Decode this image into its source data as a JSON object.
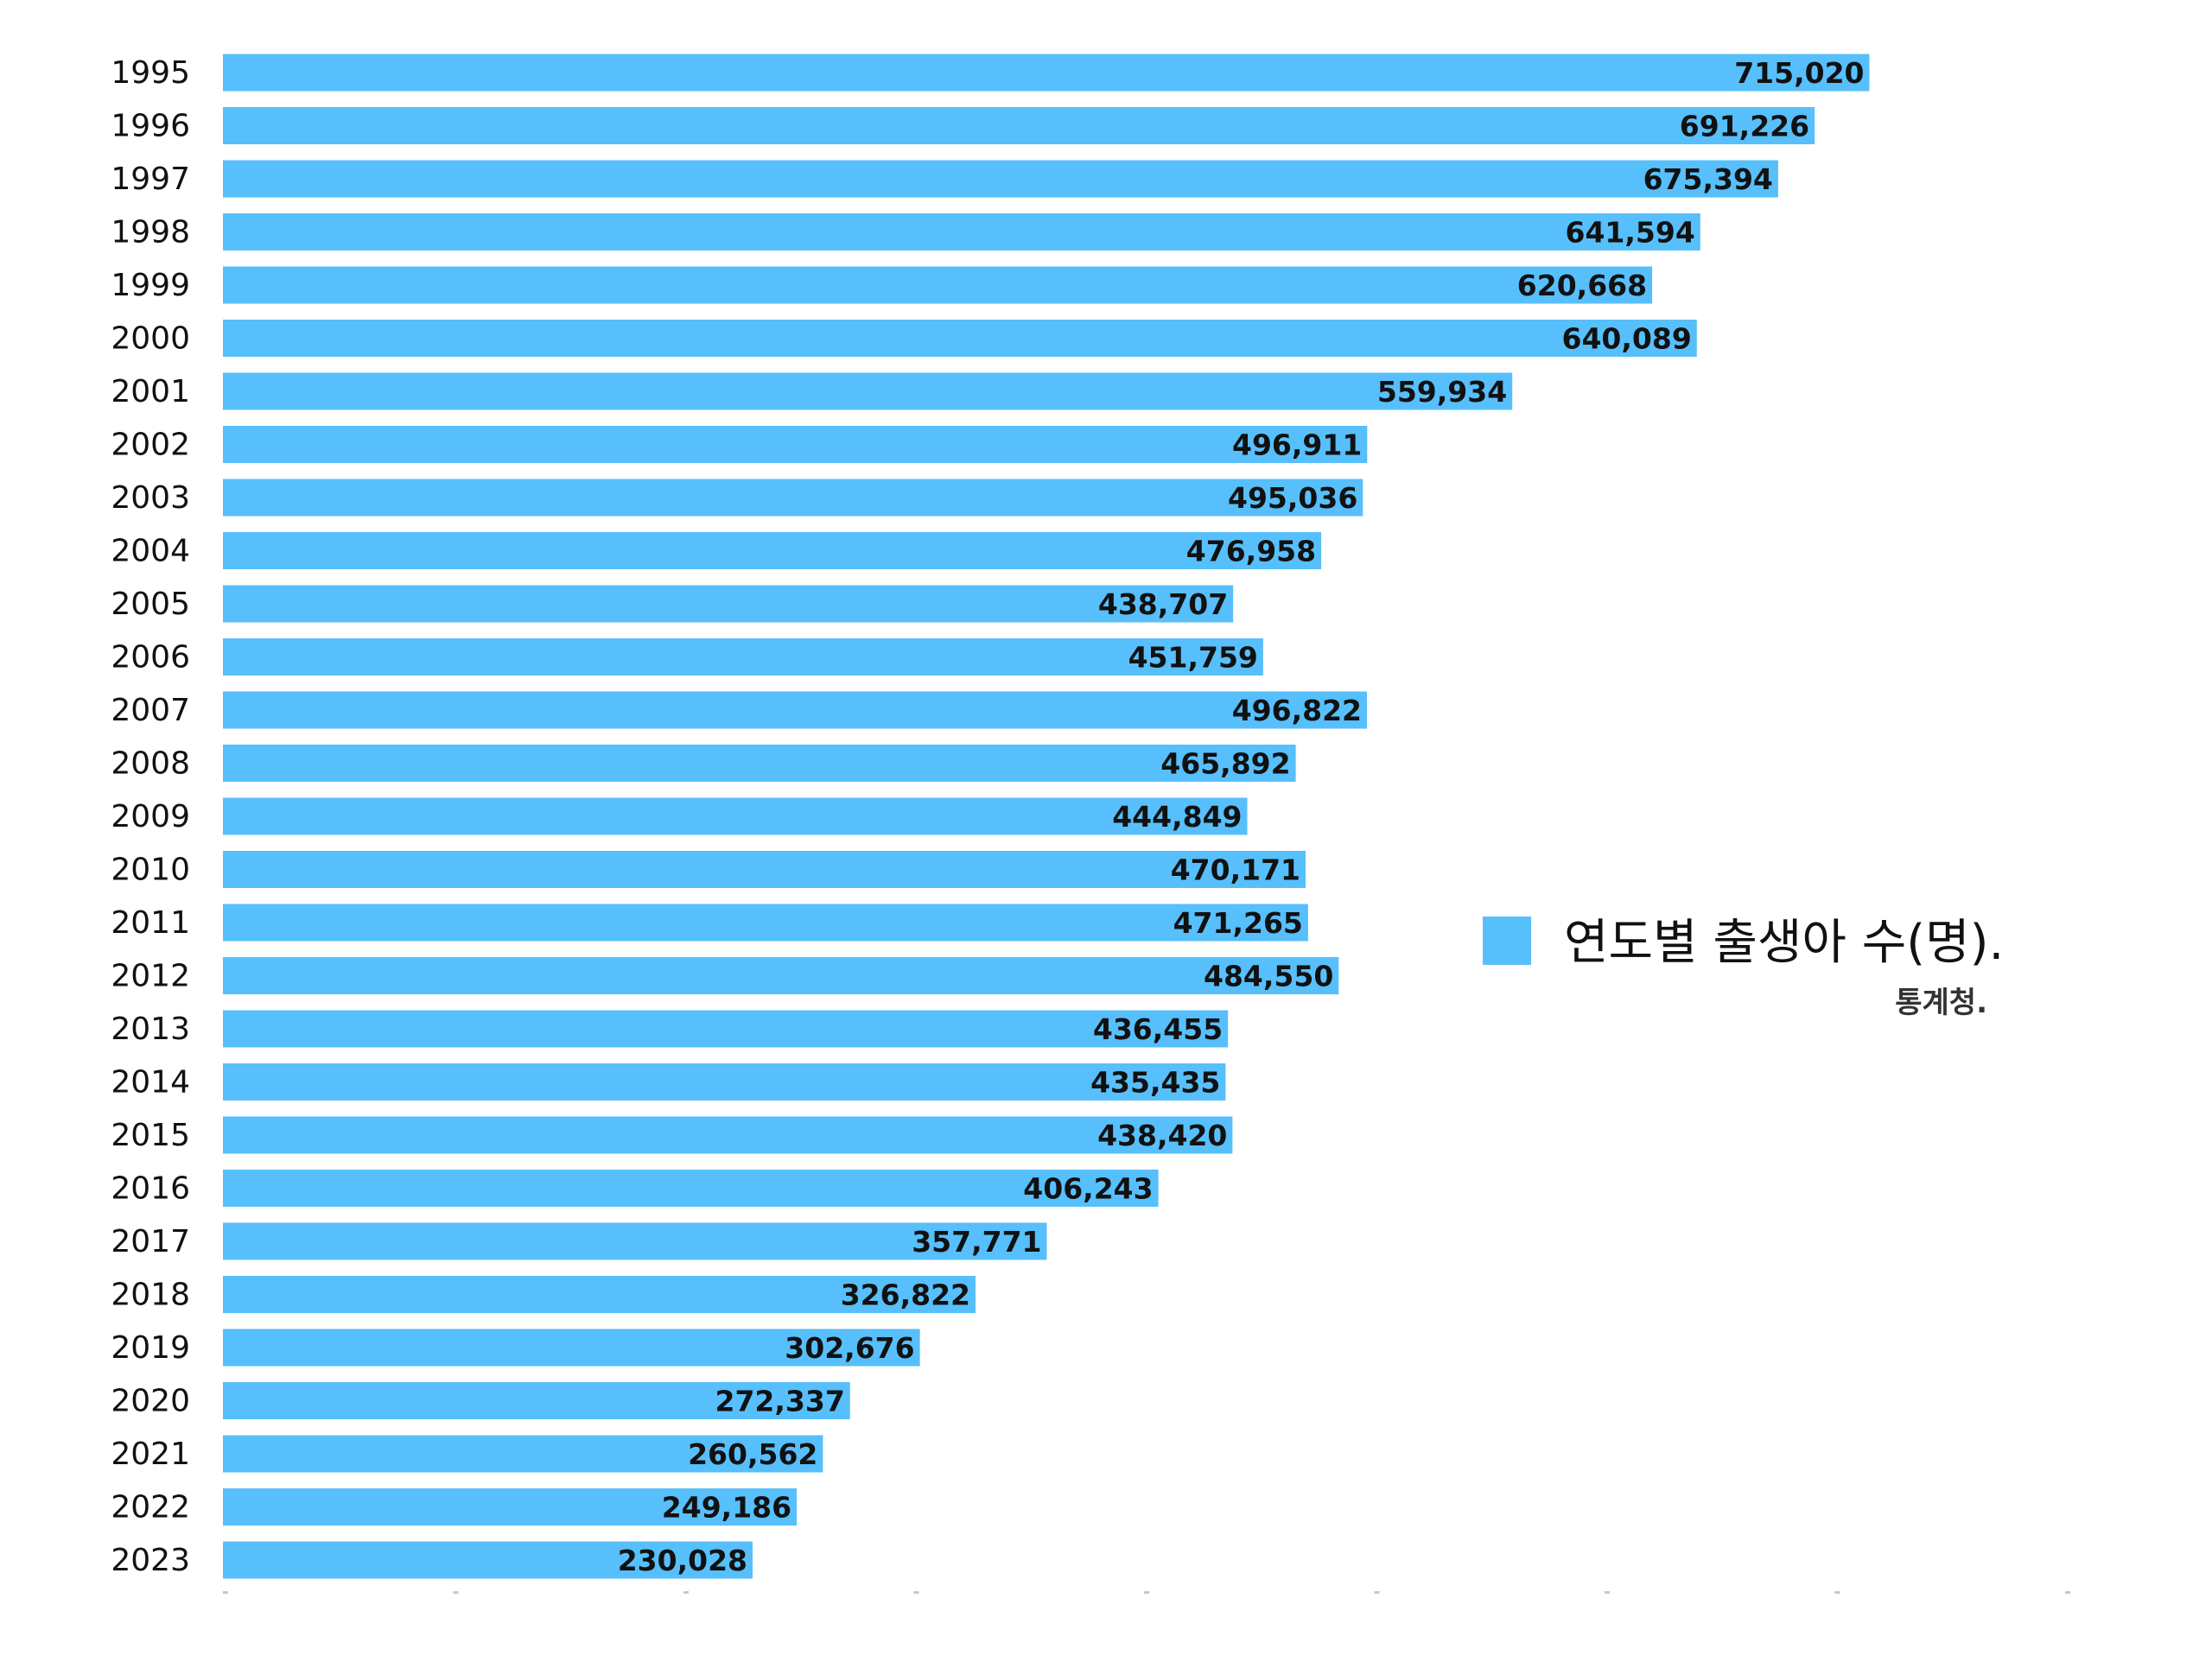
{
  "chart_data": {
    "type": "bar",
    "orientation": "horizontal",
    "categories": [
      "1995",
      "1996",
      "1997",
      "1998",
      "1999",
      "2000",
      "2001",
      "2002",
      "2003",
      "2004",
      "2005",
      "2006",
      "2007",
      "2008",
      "2009",
      "2010",
      "2011",
      "2012",
      "2013",
      "2014",
      "2015",
      "2016",
      "2017",
      "2018",
      "2019",
      "2020",
      "2021",
      "2022",
      "2023"
    ],
    "series": [
      {
        "name": "연도별 출생아 수(명).",
        "color": "#57bffb",
        "values": [
          715020,
          691226,
          675394,
          641594,
          620668,
          640089,
          559934,
          496911,
          495036,
          476958,
          438707,
          451759,
          496822,
          465892,
          444849,
          470171,
          471265,
          484550,
          436455,
          435435,
          438420,
          406243,
          357771,
          326822,
          302676,
          272337,
          260562,
          249186,
          230028
        ]
      }
    ],
    "value_labels": [
      "715,020",
      "691,226",
      "675,394",
      "641,594",
      "620,668",
      "640,089",
      "559,934",
      "496,911",
      "495,036",
      "476,958",
      "438,707",
      "451,759",
      "496,822",
      "465,892",
      "444,849",
      "470,171",
      "471,265",
      "484,550",
      "436,455",
      "435,435",
      "438,420",
      "406,243",
      "357,771",
      "326,822",
      "302,676",
      "272,337",
      "260,562",
      "249,186",
      "230,028"
    ],
    "xlim": [
      0,
      800000
    ],
    "grid": false,
    "legend": {
      "label": "연도별 출생아 수(명).",
      "color": "#57bffb",
      "placement": "right"
    },
    "source": "통계청."
  }
}
